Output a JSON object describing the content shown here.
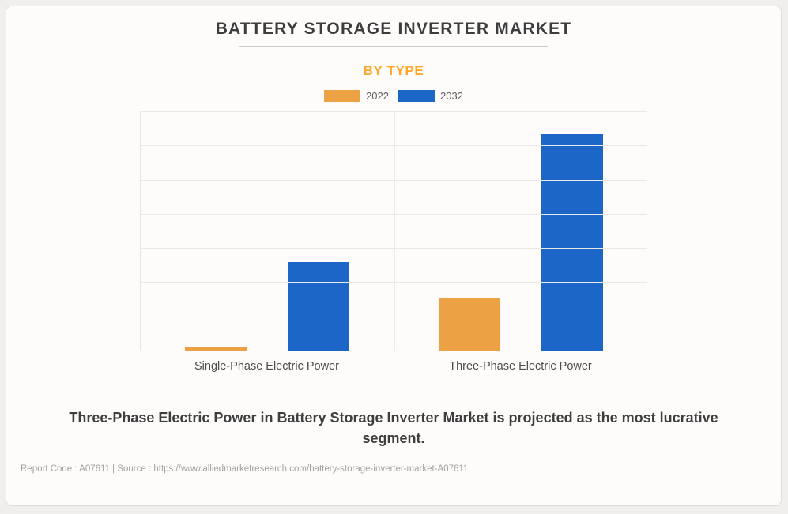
{
  "header": {
    "title": "BATTERY STORAGE INVERTER MARKET",
    "subtitle": "BY TYPE"
  },
  "colors": {
    "accent_orange": "#FFA726",
    "bar_2022": "#EDA145",
    "bar_2032": "#1B66C6",
    "card_background": "#FDFCFA",
    "page_background": "#F0EFED"
  },
  "chart_data": {
    "type": "bar",
    "title": "BATTERY STORAGE INVERTER MARKET",
    "subtitle": "BY TYPE",
    "categories": [
      "Single-Phase Electric Power",
      "Three-Phase Electric Power"
    ],
    "series": [
      {
        "name": "2022",
        "color": "#EDA145",
        "values": [
          0.09,
          1.55
        ]
      },
      {
        "name": "2032",
        "color": "#1B66C6",
        "values": [
          2.59,
          6.34
        ]
      }
    ],
    "xlabel": "",
    "ylabel": "",
    "ylim": [
      0,
      7
    ],
    "gridline_interval": 1,
    "grid": true,
    "value_axis_labels_visible": false,
    "legend_position": "top",
    "units_note": "No numeric axis labels shown in image; values estimated in gridline units (1 unit = 1 horizontal gridline interval)"
  },
  "caption": {
    "text": "Three-Phase Electric Power in Battery Storage Inverter Market is projected as the most lucrative segment."
  },
  "footer": {
    "text": "Report Code : A07611  |  Source : https://www.alliedmarketresearch.com/battery-storage-inverter-market-A07611"
  }
}
